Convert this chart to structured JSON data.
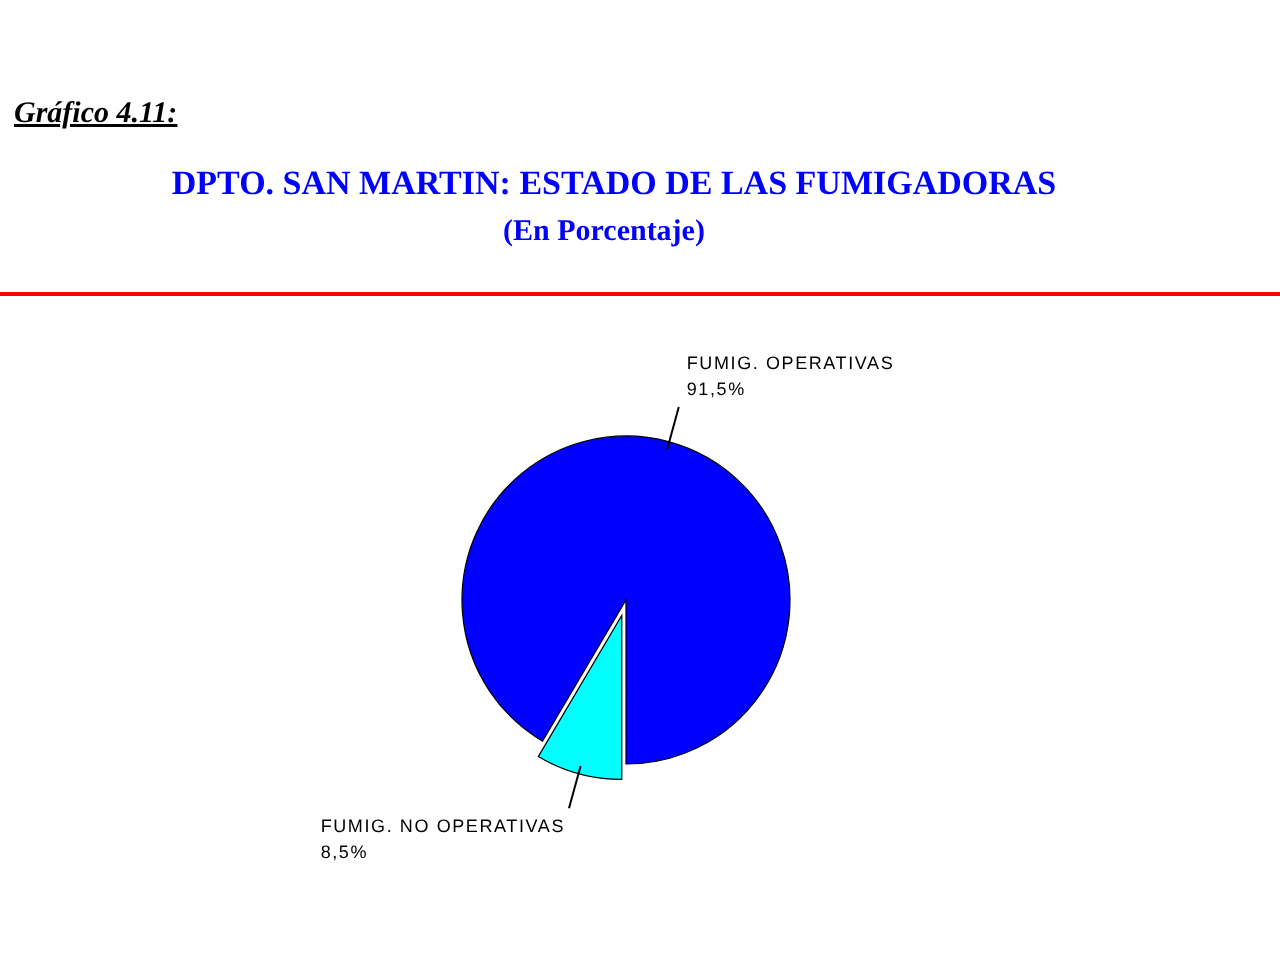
{
  "chart_data": {
    "type": "pie",
    "title": "DPTO. SAN MARTIN: ESTADO DE LAS FUMIGADORAS",
    "subtitle": "(En Porcentaje)",
    "annotations": [
      "Gráfico 4.11:"
    ],
    "categories": [
      "FUMIG. OPERATIVAS",
      "FUMIG. NO OPERATIVAS"
    ],
    "values": [
      91.5,
      8.5
    ],
    "colors": [
      "#0000ff",
      "#00ffff"
    ],
    "value_labels": [
      "91,5%",
      "8,5%"
    ]
  }
}
